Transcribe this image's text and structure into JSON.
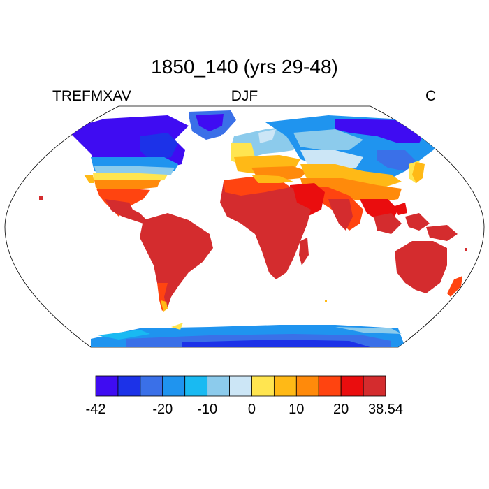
{
  "title": "1850_140 (yrs 29-48)",
  "left_label": "TREFMXAV",
  "center_label": "DJF",
  "right_label": "C",
  "colorbar": {
    "colors": [
      "#3f0cf2",
      "#1c32e8",
      "#3a70e8",
      "#1f94ef",
      "#19baf2",
      "#8ccbec",
      "#cce6f6",
      "#ffe550",
      "#ffb916",
      "#ff8a0b",
      "#ff4410",
      "#ea0d0e",
      "#d42c2e"
    ],
    "tick_labels": [
      "-42",
      "-20",
      "-10",
      "0",
      "10",
      "20",
      "38.54"
    ],
    "tick_boundaries": [
      0,
      3,
      5,
      7,
      9,
      11,
      13
    ]
  },
  "map": {
    "projection": "Robinson",
    "field_range": [
      -42,
      38.54
    ],
    "ocean_color": "#ffffff"
  }
}
